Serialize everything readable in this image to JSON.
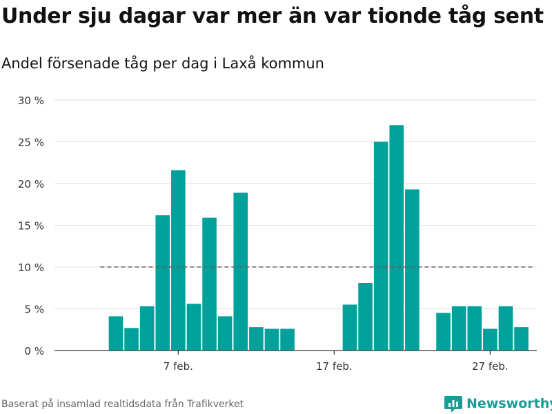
{
  "title": "Under sju dagar var mer än var tionde tåg sent",
  "subtitle": "Andel försenade tåg per dag i Laxå kommun",
  "source": "Baserat på insamlad realtidsdata från Trafikverket",
  "brand": {
    "name": "Newsworthy",
    "icon": "newsworthy-logo-icon",
    "color": "#1a9b95"
  },
  "colors": {
    "bar": "#00a19a",
    "grid": "#dddddd",
    "axis": "#333333",
    "reference_line": "#666666"
  },
  "chart_data": {
    "type": "bar",
    "title": "Under sju dagar var mer än var tionde tåg sent",
    "subtitle": "Andel försenade tåg per dag i Laxå kommun",
    "xlabel": "",
    "ylabel": "",
    "ylim": [
      0,
      30
    ],
    "yticks": [
      0,
      5,
      10,
      15,
      20,
      25,
      30
    ],
    "ytick_labels": [
      "0 %",
      "5 %",
      "10 %",
      "15 %",
      "20 %",
      "25 %",
      "30 %"
    ],
    "x_range": [
      1,
      31
    ],
    "x": [
      3,
      4,
      5,
      6,
      7,
      8,
      9,
      10,
      11,
      12,
      13,
      14,
      18,
      19,
      20,
      21,
      22,
      24,
      25,
      26,
      27,
      28,
      29
    ],
    "values": [
      4.1,
      2.7,
      5.3,
      16.2,
      21.6,
      5.6,
      15.9,
      4.1,
      18.9,
      2.8,
      2.6,
      2.6,
      5.5,
      8.1,
      25.0,
      27.0,
      19.3,
      4.5,
      5.3,
      5.3,
      2.6,
      5.3,
      2.8
    ],
    "xticks": [
      7,
      17,
      27
    ],
    "xtick_labels": [
      "7 feb.",
      "17 feb.",
      "27 feb."
    ],
    "reference_line": {
      "y": 10,
      "x_from": 2,
      "x_to": 29.8,
      "style": "dashed"
    },
    "grid": true,
    "legend": "none"
  }
}
